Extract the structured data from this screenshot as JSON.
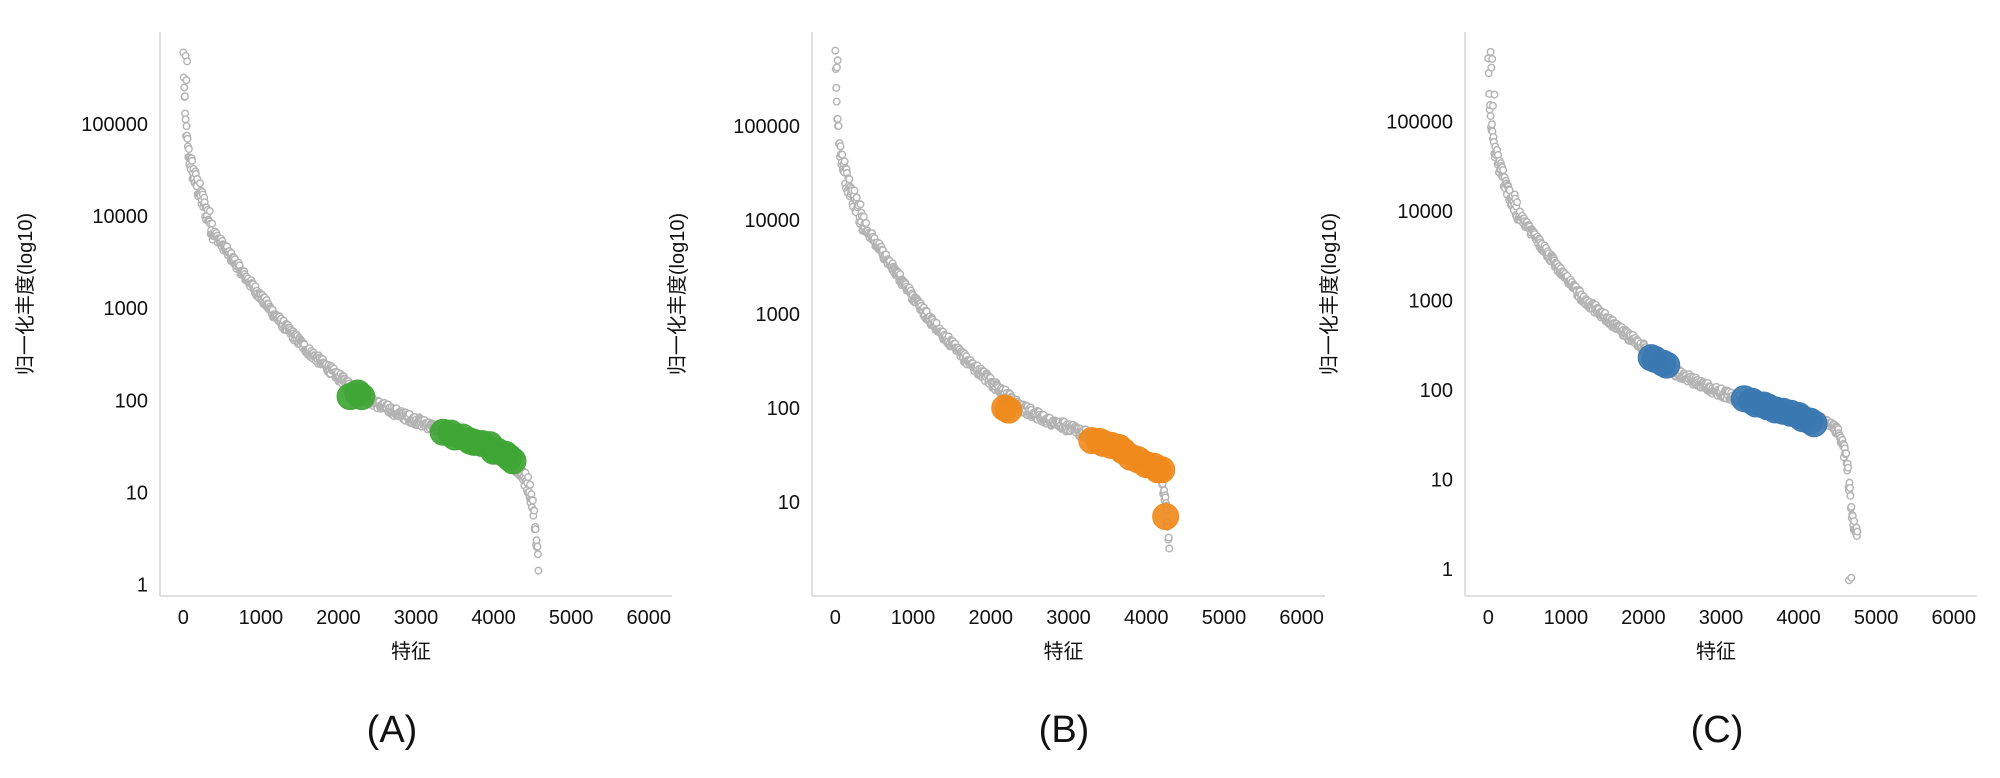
{
  "chart_data": [
    {
      "type": "scatter",
      "panel_label": "(A)",
      "xlabel": "特征",
      "ylabel": "归一化丰度(log10)",
      "y_scale": "log",
      "xlim": [
        -300,
        6300
      ],
      "ylim": [
        0.75,
        1000000
      ],
      "x_ticks": [
        "0",
        "1000",
        "2000",
        "3000",
        "4000",
        "5000",
        "6000"
      ],
      "y_ticks": [
        "1",
        "10",
        "100",
        "1000",
        "10000",
        "100000"
      ],
      "grid": false,
      "background_series": {
        "color": "#b3b3b3",
        "n_points": 4580,
        "max_x": 4580,
        "anchors": [
          [
            0,
            550000
          ],
          [
            20,
            130000
          ],
          [
            60,
            50000
          ],
          [
            150,
            25000
          ],
          [
            400,
            6500
          ],
          [
            800,
            2200
          ],
          [
            1200,
            800
          ],
          [
            1600,
            350
          ],
          [
            2000,
            180
          ],
          [
            2400,
            100
          ],
          [
            2800,
            70
          ],
          [
            3200,
            52
          ],
          [
            3600,
            40
          ],
          [
            4000,
            28
          ],
          [
            4300,
            18
          ],
          [
            4450,
            12
          ],
          [
            4500,
            8
          ],
          [
            4540,
            4
          ],
          [
            4580,
            1.6
          ]
        ],
        "outliers": [
          [
            30,
            550000
          ],
          [
            50,
            480000
          ],
          [
            40,
            300000
          ],
          [
            20,
            200000
          ]
        ]
      },
      "highlight_series": {
        "color": "#3fa535",
        "points": [
          [
            2150,
            110
          ],
          [
            2250,
            120
          ],
          [
            2300,
            110
          ],
          [
            3350,
            45
          ],
          [
            3450,
            44
          ],
          [
            3500,
            40
          ],
          [
            3600,
            40
          ],
          [
            3700,
            36
          ],
          [
            3750,
            35
          ],
          [
            3850,
            34
          ],
          [
            3950,
            33
          ],
          [
            4000,
            28
          ],
          [
            4050,
            28
          ],
          [
            4150,
            26
          ],
          [
            4200,
            24
          ],
          [
            4250,
            22
          ]
        ]
      }
    },
    {
      "type": "scatter",
      "panel_label": "(B)",
      "xlabel": "特征",
      "ylabel": "归一化丰度(log10)",
      "y_scale": "log",
      "xlim": [
        -300,
        6300
      ],
      "ylim": [
        1.0,
        1000000
      ],
      "x_ticks": [
        "0",
        "1000",
        "2000",
        "3000",
        "4000",
        "5000",
        "6000"
      ],
      "y_ticks": [
        "10",
        "100",
        "1000",
        "10000",
        "100000"
      ],
      "grid": false,
      "background_series": {
        "color": "#b3b3b3",
        "n_points": 4300,
        "max_x": 4300,
        "anchors": [
          [
            0,
            500000
          ],
          [
            20,
            140000
          ],
          [
            60,
            60000
          ],
          [
            150,
            25000
          ],
          [
            400,
            8000
          ],
          [
            800,
            2600
          ],
          [
            1200,
            900
          ],
          [
            1600,
            380
          ],
          [
            2000,
            190
          ],
          [
            2400,
            100
          ],
          [
            2800,
            70
          ],
          [
            3200,
            54
          ],
          [
            3600,
            42
          ],
          [
            4000,
            30
          ],
          [
            4150,
            22
          ],
          [
            4250,
            12
          ],
          [
            4300,
            3
          ]
        ],
        "outliers": [
          [
            30,
            500000
          ],
          [
            20,
            420000
          ]
        ]
      },
      "highlight_series": {
        "color": "#f08a1c",
        "points": [
          [
            2180,
            100
          ],
          [
            2230,
            95
          ],
          [
            3300,
            45
          ],
          [
            3400,
            44
          ],
          [
            3450,
            42
          ],
          [
            3550,
            40
          ],
          [
            3650,
            38
          ],
          [
            3700,
            35
          ],
          [
            3800,
            30
          ],
          [
            3900,
            28
          ],
          [
            4000,
            25
          ],
          [
            4100,
            24
          ],
          [
            4150,
            22
          ],
          [
            4200,
            22
          ],
          [
            4250,
            7
          ]
        ]
      }
    },
    {
      "type": "scatter",
      "panel_label": "(C)",
      "xlabel": "特征",
      "ylabel": "归一化丰度(log10)",
      "y_scale": "log",
      "xlim": [
        -300,
        6300
      ],
      "ylim": [
        0.5,
        1000000
      ],
      "x_ticks": [
        "0",
        "1000",
        "2000",
        "3000",
        "4000",
        "5000",
        "6000"
      ],
      "y_ticks": [
        "1",
        "10",
        "100",
        "1000",
        "10000",
        "100000"
      ],
      "grid": false,
      "background_series": {
        "color": "#b3b3b3",
        "n_points": 4760,
        "max_x": 4760,
        "anchors": [
          [
            0,
            600000
          ],
          [
            20,
            140000
          ],
          [
            60,
            60000
          ],
          [
            150,
            30000
          ],
          [
            400,
            9000
          ],
          [
            800,
            3000
          ],
          [
            1200,
            1100
          ],
          [
            1600,
            550
          ],
          [
            2000,
            300
          ],
          [
            2400,
            160
          ],
          [
            2800,
            110
          ],
          [
            3200,
            80
          ],
          [
            3600,
            65
          ],
          [
            4000,
            55
          ],
          [
            4300,
            45
          ],
          [
            4500,
            35
          ],
          [
            4600,
            20
          ],
          [
            4660,
            8
          ],
          [
            4700,
            3
          ],
          [
            4760,
            2.4
          ]
        ],
        "outliers": [
          [
            30,
            600000
          ],
          [
            50,
            500000
          ],
          [
            40,
            400000
          ],
          [
            80,
            200000
          ],
          [
            60,
            150000
          ],
          [
            4650,
            0.75
          ],
          [
            4680,
            0.8
          ]
        ]
      },
      "highlight_series": {
        "color": "#3a78b1",
        "points": [
          [
            2100,
            230
          ],
          [
            2150,
            220
          ],
          [
            2250,
            200
          ],
          [
            2300,
            190
          ],
          [
            3300,
            80
          ],
          [
            3400,
            75
          ],
          [
            3450,
            70
          ],
          [
            3550,
            68
          ],
          [
            3600,
            65
          ],
          [
            3700,
            60
          ],
          [
            3800,
            58
          ],
          [
            3900,
            55
          ],
          [
            4000,
            52
          ],
          [
            4050,
            48
          ],
          [
            4150,
            45
          ],
          [
            4200,
            42
          ]
        ]
      }
    }
  ]
}
